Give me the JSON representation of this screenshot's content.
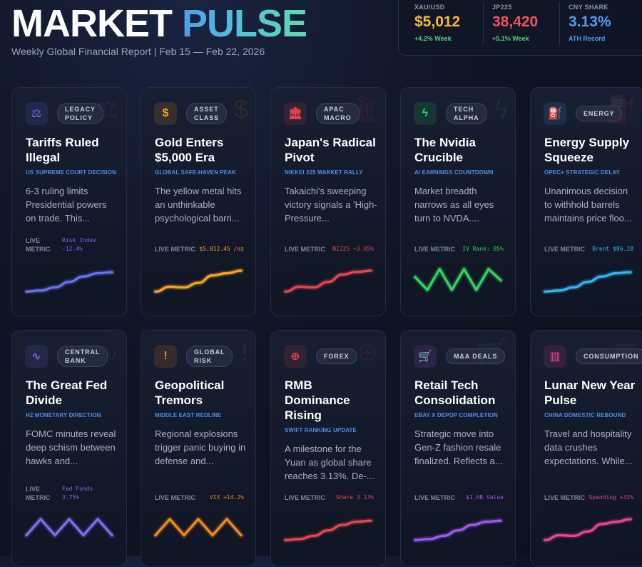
{
  "header": {
    "title_word1": "MARKET",
    "title_word2": "PULSE",
    "subtitle": "Weekly Global Financial Report | Feb 15 — Feb 22, 2026"
  },
  "tickers": [
    {
      "label": "XAU/USD",
      "value": "$5,012",
      "change": "+4.2% Week",
      "value_color": "#f5b73b",
      "change_color": "#4fd17a"
    },
    {
      "label": "JP225",
      "value": "38,420",
      "change": "+5.1% Week",
      "value_color": "#f0525d",
      "change_color": "#4fd17a"
    },
    {
      "label": "CNY SHARE",
      "value": "3.13%",
      "change": "ATH Record",
      "value_color": "#4f9cf0",
      "change_color": "#4f9cf0"
    }
  ],
  "cards": [
    {
      "icon": "scale-icon",
      "glyph": "⚖",
      "tag": "LEGACY\nPOLICY",
      "title": "Tariffs Ruled Illegal",
      "subtitle": "US SUPREME COURT DECISION",
      "desc": "6-3 ruling limits Presidential powers on trade. This...",
      "metric_label": "LIVE\nMETRIC",
      "metric_value": "Risk Index\n-12.4%",
      "color": "#6a6ff0",
      "trend": [
        0.15,
        0.18,
        0.28,
        0.45,
        0.62,
        0.72,
        0.75
      ]
    },
    {
      "icon": "dollar-icon",
      "glyph": "$",
      "tag": "ASSET\nCLASS",
      "title": "Gold Enters $5,000 Era",
      "subtitle": "GLOBAL SAFE-HAVEN PEAK",
      "desc": "The yellow metal hits an unthinkable psychological barri...",
      "metric_label": "LIVE METRIC",
      "metric_value": "$5,012.45 /oz",
      "color": "#f5a31a",
      "trend": [
        0.15,
        0.3,
        0.28,
        0.42,
        0.65,
        0.72,
        0.8
      ]
    },
    {
      "icon": "bank-icon",
      "glyph": "🏛",
      "tag": "APAC\nMACRO",
      "title": "Japan's Radical Pivot",
      "subtitle": "NIKKEI 225 MARKET RALLY",
      "desc": "Takaichi's sweeping victory signals a 'High-Pressure...",
      "metric_label": "LIVE METRIC",
      "metric_value": "NI225 +3.85%",
      "color": "#e8434e",
      "trend": [
        0.15,
        0.3,
        0.28,
        0.45,
        0.68,
        0.76,
        0.8
      ]
    },
    {
      "icon": "bolt-icon",
      "glyph": "ϟ",
      "tag": "TECH\nALPHA",
      "title": "The Nvidia Crucible",
      "subtitle": "AI EARNINGS COUNTDOWN",
      "desc": "Market breadth narrows as all eyes turn to NVDA....",
      "metric_label": "LIVE METRIC",
      "metric_value": "IV Rank: 85%",
      "color": "#2fd45e",
      "trend": [
        0.6,
        0.2,
        0.85,
        0.2,
        0.85,
        0.2,
        0.85,
        0.5
      ]
    },
    {
      "icon": "fuel-pump-icon",
      "glyph": "⛽",
      "tag": "ENERGY",
      "title": "Energy Supply Squeeze",
      "subtitle": "OPEC+ STRATEGIC DELAY",
      "desc": "Unanimous decision to withhold barrels maintains price floo...",
      "metric_label": "LIVE METRIC",
      "metric_value": "Brent $86.20",
      "color": "#2fb6f0",
      "trend": [
        0.15,
        0.18,
        0.28,
        0.45,
        0.62,
        0.72,
        0.75
      ]
    },
    {
      "icon": "pulse-icon",
      "glyph": "∿",
      "tag": "CENTRAL\nBANK",
      "title": "The Great Fed Divide",
      "subtitle": "H2 MONETARY DIRECTION",
      "desc": "FOMC minutes reveal deep schism between hawks and...",
      "metric_label": "LIVE\nMETRIC",
      "metric_value": "Fed Funds\n3.75%",
      "color": "#7a6ff0",
      "trend": [
        0.3,
        0.8,
        0.3,
        0.8,
        0.3,
        0.8,
        0.3
      ]
    },
    {
      "icon": "alert-icon",
      "glyph": "!",
      "tag": "GLOBAL\nRISK",
      "title": "Geopolitical Tremors",
      "subtitle": "MIDDLE EAST REDLINE",
      "desc": "Regional explosions trigger panic buying in defense and...",
      "metric_label": "LIVE METRIC",
      "metric_value": "VIX +14.2%",
      "color": "#f5861a",
      "trend": [
        0.3,
        0.8,
        0.3,
        0.8,
        0.3,
        0.8,
        0.3
      ]
    },
    {
      "icon": "globe-icon",
      "glyph": "⊕",
      "tag": "FOREX",
      "title": "RMB Dominance Rising",
      "subtitle": "SWIFT RANKING UPDATE",
      "desc": "A milestone for the Yuan as global share reaches 3.13%. De-...",
      "metric_label": "LIVE METRIC",
      "metric_value": "Share 3.13%",
      "color": "#e8434e",
      "trend": [
        0.15,
        0.18,
        0.28,
        0.45,
        0.62,
        0.72,
        0.75
      ]
    },
    {
      "icon": "cart-icon",
      "glyph": "🛒",
      "tag": "M&A DEALS",
      "title": "Retail Tech Consolidation",
      "subtitle": "EBAY X DEPOP COMPLETION",
      "desc": "Strategic move into Gen-Z fashion resale finalized. Reflects a...",
      "metric_label": "LIVE METRIC",
      "metric_value": "$1.6B Value",
      "color": "#a355f0",
      "trend": [
        0.15,
        0.18,
        0.28,
        0.45,
        0.62,
        0.72,
        0.75
      ]
    },
    {
      "icon": "bar-chart-icon",
      "glyph": "▥",
      "tag": "CONSUMPTION",
      "title": "Lunar New Year Pulse",
      "subtitle": "CHINA DOMESTIC REBOUND",
      "desc": "Travel and hospitality data crushes expectations. While...",
      "metric_label": "LIVE METRIC",
      "metric_value": "Spending +32%",
      "color": "#e8458e",
      "trend": [
        0.15,
        0.3,
        0.28,
        0.42,
        0.65,
        0.72,
        0.8
      ]
    }
  ]
}
